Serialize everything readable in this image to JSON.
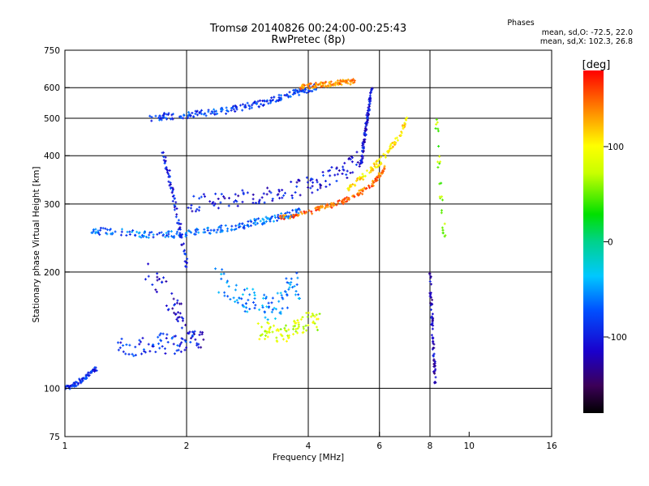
{
  "chart_data": {
    "type": "scatter",
    "title": "Tromsø 20140826 00:24:00-00:25:43",
    "subtitle": "RwPretec (8p)",
    "xlabel": "Frequency [MHz]",
    "ylabel": "Stationary phase Virtual Height [km]",
    "xscale": "log",
    "yscale": "log",
    "xlim": [
      1,
      16
    ],
    "ylim": [
      75,
      750
    ],
    "xticks": [
      1,
      2,
      4,
      6,
      8,
      10,
      16
    ],
    "xtick_labels": [
      "1",
      "2",
      "4",
      "6",
      "8",
      "10",
      "16"
    ],
    "xgrid": [
      2,
      4,
      6,
      8
    ],
    "yticks": [
      75,
      100,
      200,
      300,
      400,
      500,
      600,
      750
    ],
    "ytick_labels": [
      "75",
      "100",
      "200",
      "300",
      "400",
      "500",
      "600",
      "750"
    ],
    "ygrid": [
      100,
      200,
      300,
      400,
      500,
      600
    ],
    "grid": true,
    "stats": {
      "heading": "Phases",
      "lines": [
        "mean, sd,O: -72.5, 22.0",
        "mean, sd,X: 102.3, 26.8"
      ]
    },
    "colorbar": {
      "label": "[deg]",
      "range": [
        -180,
        180
      ],
      "ticks": [
        100,
        0,
        -100
      ],
      "tick_labels": [
        "100",
        "0",
        "-100"
      ],
      "colormap": "rainbow (black-purple-blue-cyan-green-yellow-orange-red)"
    },
    "colors": {
      "grid": "#000000",
      "background": "#ffffff"
    },
    "traces": [
      {
        "x": [
          1.0,
          1.04,
          1.08,
          1.12,
          1.16,
          1.2
        ],
        "y": [
          100,
          101,
          104,
          106,
          110,
          113
        ],
        "phase": -95,
        "spread": 0.015
      },
      {
        "x": [
          1.6,
          1.75,
          1.9,
          2.05,
          2.2,
          2.4,
          2.6,
          2.8,
          3.0,
          3.2,
          3.4,
          3.6,
          3.8,
          4.0,
          4.2
        ],
        "y": [
          500,
          505,
          508,
          510,
          515,
          520,
          528,
          535,
          545,
          555,
          565,
          575,
          585,
          595,
          605
        ],
        "phase": -85,
        "spread": 0.02
      },
      {
        "x": [
          3.8,
          4.0,
          4.2,
          4.4,
          4.6,
          4.8,
          5.0,
          5.2
        ],
        "y": [
          600,
          605,
          610,
          612,
          615,
          618,
          620,
          622
        ],
        "phase": 140,
        "spread": 0.015
      },
      {
        "x": [
          1.15,
          1.25,
          1.4,
          1.55,
          1.7,
          1.85,
          2.0,
          2.2,
          2.4,
          2.6,
          2.8,
          3.0,
          3.2,
          3.4,
          3.6,
          3.8
        ],
        "y": [
          255,
          255,
          253,
          250,
          250,
          250,
          252,
          255,
          258,
          262,
          265,
          270,
          273,
          278,
          282,
          288
        ],
        "phase": -70,
        "spread": 0.02
      },
      {
        "x": [
          3.4,
          3.7,
          4.0,
          4.3,
          4.6,
          4.9,
          5.2,
          5.5,
          5.8,
          6.0,
          6.2
        ],
        "y": [
          275,
          280,
          285,
          292,
          298,
          305,
          315,
          325,
          340,
          355,
          372
        ],
        "phase": 150,
        "spread": 0.015
      },
      {
        "x": [
          5.0,
          5.3,
          5.6,
          5.9,
          6.2,
          6.5,
          6.8,
          7.0
        ],
        "y": [
          330,
          345,
          360,
          380,
          400,
          430,
          460,
          500
        ],
        "phase": 110,
        "spread": 0.02
      },
      {
        "x": [
          5.4,
          5.45,
          5.5,
          5.55,
          5.6,
          5.65,
          5.7,
          5.75
        ],
        "y": [
          380,
          410,
          440,
          470,
          500,
          530,
          560,
          600
        ],
        "phase": -110,
        "spread": 0.02
      },
      {
        "x": [
          2.0,
          2.3,
          2.6,
          3.0,
          3.4,
          3.8,
          4.2,
          4.6,
          5.0,
          5.4
        ],
        "y": [
          300,
          305,
          310,
          315,
          320,
          330,
          340,
          355,
          370,
          400
        ],
        "phase": -105,
        "spread": 0.05
      },
      {
        "x": [
          1.6,
          1.75,
          1.9,
          2.05,
          2.2
        ],
        "y": [
          200,
          180,
          160,
          140,
          130
        ],
        "phase": -110,
        "spread": 0.08
      },
      {
        "x": [
          1.35,
          1.5,
          1.65,
          1.8,
          1.95,
          2.1
        ],
        "y": [
          130,
          128,
          132,
          130,
          128,
          135
        ],
        "phase": -90,
        "spread": 0.06
      },
      {
        "x": [
          2.4,
          2.6,
          2.8,
          3.0,
          3.2,
          3.4,
          3.6,
          3.8
        ],
        "y": [
          190,
          180,
          170,
          165,
          160,
          170,
          180,
          185
        ],
        "phase": -60,
        "spread": 0.08
      },
      {
        "x": [
          3.0,
          3.2,
          3.4,
          3.6,
          3.8,
          4.0,
          4.3
        ],
        "y": [
          140,
          142,
          138,
          140,
          145,
          150,
          148
        ],
        "phase": 80,
        "spread": 0.05
      },
      {
        "x": [
          1.75,
          1.8,
          1.85,
          1.9,
          1.95,
          2.0
        ],
        "y": [
          400,
          360,
          320,
          280,
          240,
          210
        ],
        "phase": -100,
        "spread": 0.03
      },
      {
        "x": [
          8.0,
          8.05,
          8.1,
          8.15,
          8.2,
          8.25
        ],
        "y": [
          200,
          170,
          150,
          130,
          115,
          105
        ],
        "phase": -120,
        "spread": 0.02
      },
      {
        "x": [
          8.3,
          8.5,
          8.7
        ],
        "y": [
          500,
          320,
          240
        ],
        "phase": 60,
        "spread": 0.03
      }
    ]
  }
}
